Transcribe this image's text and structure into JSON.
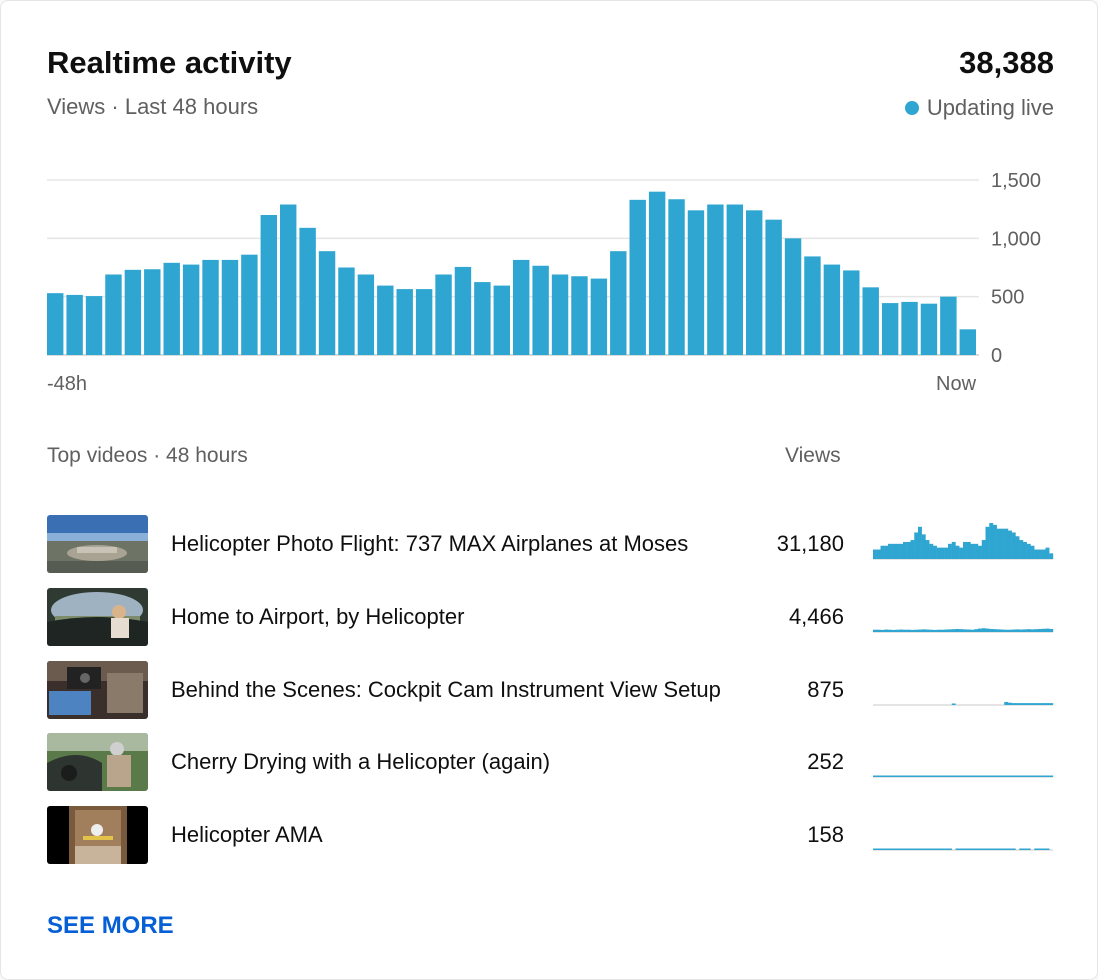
{
  "header": {
    "title": "Realtime activity",
    "subtitle": "Views · Last 48 hours",
    "total_views": "38,388",
    "live_label": "Updating live"
  },
  "colors": {
    "accent": "#2fa6d1",
    "link": "#065fd4",
    "muted": "#606060",
    "grid": "#e5e5e5"
  },
  "chart_data": {
    "type": "bar",
    "x_start_label": "-48h",
    "x_end_label": "Now",
    "y_ticks": [
      "1,500",
      "1,000",
      "500",
      "0"
    ],
    "y_tick_values": [
      1500,
      1000,
      500,
      0
    ],
    "ylim": [
      0,
      1500
    ],
    "grid": true,
    "values": [
      530,
      515,
      505,
      690,
      730,
      735,
      790,
      775,
      815,
      815,
      860,
      1200,
      1290,
      1090,
      890,
      750,
      690,
      595,
      565,
      565,
      690,
      755,
      625,
      595,
      815,
      765,
      690,
      675,
      655,
      890,
      1330,
      1400,
      1335,
      1240,
      1290,
      1290,
      1240,
      1160,
      1000,
      845,
      775,
      725,
      580,
      445,
      455,
      440,
      500,
      220
    ]
  },
  "top_videos": {
    "title": "Top videos · 48 hours",
    "views_header": "Views",
    "items": [
      {
        "title": "Helicopter Photo Flight: 737 MAX Airplanes at Moses",
        "views": "31,180",
        "thumb": "aerial-airport",
        "spark": [
          5,
          5,
          7,
          7,
          8,
          8,
          8,
          8,
          9,
          9,
          10,
          14,
          17,
          13,
          10,
          8,
          7,
          6,
          6,
          6,
          8,
          9,
          7,
          6,
          9,
          9,
          8,
          8,
          7,
          10,
          17,
          19,
          18,
          16,
          16,
          16,
          15,
          14,
          12,
          10,
          9,
          8,
          7,
          5,
          5,
          5,
          6,
          3
        ]
      },
      {
        "title": "Home to Airport, by Helicopter",
        "views": "4,466",
        "thumb": "cockpit-pilot",
        "spark": [
          1.2,
          1.2,
          1.1,
          1.3,
          1.2,
          1.1,
          1.2,
          1.3,
          1.2,
          1.2,
          1.1,
          1.2,
          1.3,
          1.4,
          1.3,
          1.2,
          1.1,
          1.2,
          1.2,
          1.3,
          1.4,
          1.5,
          1.6,
          1.5,
          1.4,
          1.3,
          1.2,
          1.5,
          1.8,
          2,
          1.8,
          1.6,
          1.5,
          1.4,
          1.3,
          1.2,
          1.2,
          1.3,
          1.4,
          1.3,
          1.4,
          1.5,
          1.4,
          1.5,
          1.6,
          1.7,
          1.8,
          1.6
        ]
      },
      {
        "title": "Behind the Scenes: Cockpit Cam Instrument View Setup",
        "views": "875",
        "thumb": "cockpit-cam",
        "spark": [
          0,
          0,
          0,
          0,
          0,
          0,
          0,
          0,
          0,
          0,
          0,
          0,
          0,
          0,
          0,
          0,
          0,
          0,
          0,
          0,
          0,
          0.6,
          0,
          0,
          0,
          0,
          0,
          0,
          0,
          0,
          0,
          0,
          0,
          0,
          0,
          1.6,
          1.2,
          1,
          1,
          1,
          1,
          1,
          1,
          1,
          1,
          1,
          1,
          1
        ]
      },
      {
        "title": "Cherry Drying with a Helicopter (again)",
        "views": "252",
        "thumb": "pilot-hills",
        "spark": [
          0.6,
          0.6,
          0.6,
          0.6,
          0.6,
          0.6,
          0.6,
          0.6,
          0.6,
          0.6,
          0.6,
          0.6,
          0.6,
          0.6,
          0.6,
          0.6,
          0.6,
          0.6,
          0.6,
          0.6,
          0.6,
          0.6,
          0.6,
          0.6,
          0.6,
          0.6,
          0.6,
          0.6,
          0.6,
          0.6,
          0.6,
          0.6,
          0.6,
          0.6,
          0.6,
          0.6,
          0.6,
          0.6,
          0.6,
          0.6,
          0.6,
          0.6,
          0.6,
          0.6,
          0.6,
          0.6,
          0.6,
          0.6
        ]
      },
      {
        "title": "Helicopter AMA",
        "views": "158",
        "thumb": "hangar",
        "spark": [
          0.6,
          0.6,
          0.6,
          0.6,
          0.6,
          0.6,
          0.6,
          0.6,
          0.6,
          0.6,
          0.6,
          0.6,
          0.6,
          0.6,
          0.6,
          0.6,
          0.6,
          0.6,
          0.6,
          0.6,
          0.6,
          0,
          0.6,
          0.6,
          0.6,
          0.6,
          0.6,
          0.6,
          0.6,
          0.6,
          0.6,
          0.6,
          0.6,
          0.6,
          0.6,
          0.6,
          0.6,
          0.6,
          0,
          0.6,
          0.6,
          0.6,
          0,
          0.6,
          0.6,
          0.6,
          0.6,
          0
        ]
      }
    ]
  },
  "see_more_label": "SEE MORE"
}
